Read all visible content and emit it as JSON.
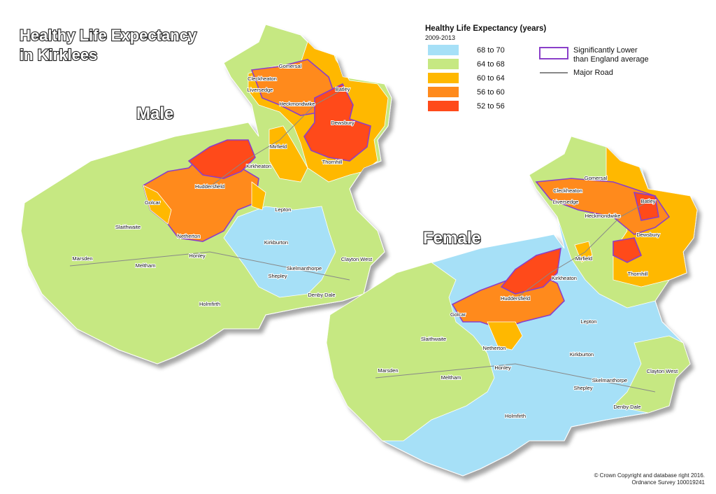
{
  "title": [
    "Healthy Life Expectancy",
    "in Kirklees"
  ],
  "maps": [
    {
      "label": "Male",
      "places": [
        "Gomersal",
        "Cleckheaton",
        "Liversedge",
        "Heckmondwike",
        "Batley",
        "Dewsbury",
        "Mirfield",
        "Thornhill",
        "Kirkheaton",
        "Huddersfield",
        "Golcar",
        "Lepton",
        "Slaithwaite",
        "Netherton",
        "Kirkburton",
        "Marsden",
        "Honley",
        "Meltham",
        "Skelmanthorpe",
        "Clayton West",
        "Shepley",
        "Denby Dale",
        "Holmfirth"
      ]
    },
    {
      "label": "Female",
      "places": [
        "Gomersal",
        "Cleckheaton",
        "Liversedge",
        "Heckmondwike",
        "Batley",
        "Dewsbury",
        "Mirfield",
        "Thornhill",
        "Kirkheaton",
        "Huddersfield",
        "Golcar",
        "Lepton",
        "Slaithwaite",
        "Netherton",
        "Kirkburton",
        "Marsden",
        "Honley",
        "Meltham",
        "Skelmanthorpe",
        "Clayton West",
        "Shepley",
        "Denby Dale",
        "Holmfirth"
      ]
    }
  ],
  "legend": {
    "title": "Healthy Life Expectancy (years)",
    "subtitle": "2009-2013",
    "items": [
      {
        "label": "68  to  70",
        "color": "#a6e0f7"
      },
      {
        "label": "64  to  68",
        "color": "#c6e882"
      },
      {
        "label": "60  to  64",
        "color": "#ffb800"
      },
      {
        "label": "56  to  60",
        "color": "#ff8a1c"
      },
      {
        "label": "52  to  56",
        "color": "#ff4a1a"
      }
    ],
    "outline": {
      "lines": [
        "Significantly Lower",
        "than England average"
      ],
      "color": "#8a3fc9"
    },
    "road": {
      "label": "Major Road",
      "color": "#888888"
    }
  },
  "copyright": [
    "© Crown Copyright and database right 2016.",
    "Ordnance Survey 100019241"
  ]
}
